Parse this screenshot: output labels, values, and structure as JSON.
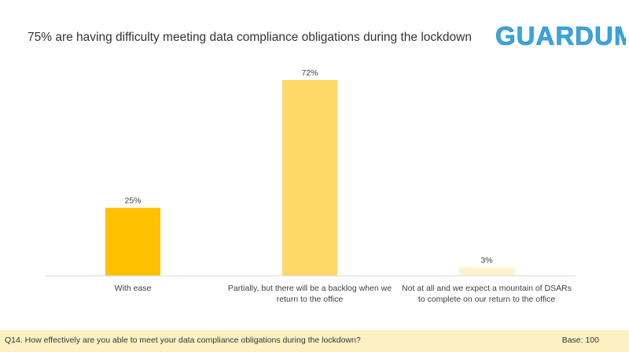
{
  "header": {
    "title": "75% are having difficulty meeting data compliance obligations during the lockdown",
    "logo_text": "GUARDUM"
  },
  "chart_data": {
    "type": "bar",
    "title": "75% are having difficulty meeting data compliance obligations during the lockdown",
    "categories": [
      [
        "With ease"
      ],
      [
        "Partially, but there will be a backlog when we",
        "return to the office"
      ],
      [
        "Not at all and we expect a mountain of DSARs",
        "to complete on our return to the office"
      ]
    ],
    "values": [
      25,
      72,
      3
    ],
    "value_labels": [
      "25%",
      "72%",
      "3%"
    ],
    "colors": [
      "#ffc000",
      "#ffd966",
      "#fff2cc"
    ],
    "ylim": [
      0,
      72
    ],
    "xlabel": "",
    "ylabel": "",
    "grid": false
  },
  "footer": {
    "question": "Q14. How effectively are you able to meet your data compliance obligations during the lockdown?",
    "base": "Base: 100"
  },
  "colors": {
    "logo": "#3aa6dd",
    "footer_bg": "#fdf1c4",
    "axis": "#d9d9d9"
  }
}
